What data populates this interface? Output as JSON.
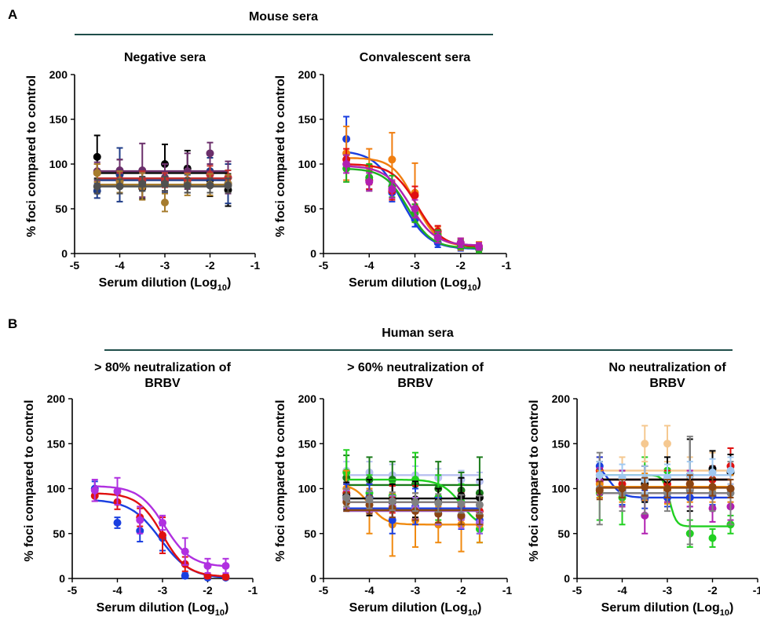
{
  "figure": {
    "panel_a_letter": "A",
    "panel_b_letter": "B",
    "group_a_title": "Mouse sera",
    "group_b_title": "Human sera",
    "group_color": "#1f4e4a"
  },
  "chart_data": [
    {
      "type": "scatter",
      "title": "Negative sera",
      "xlabel": "Serum dilution (Log",
      "xlabel_sub": "10",
      "xlabel_close": ")",
      "ylabel": "% foci compared to control",
      "xlim": [
        -5,
        -1
      ],
      "ylim": [
        0,
        200
      ],
      "xticks": [
        "-5",
        "-4",
        "-3",
        "-2",
        "-1"
      ],
      "yticks": [
        "0",
        "50",
        "100",
        "150",
        "200"
      ],
      "x": [
        -4.5,
        -4.0,
        -3.5,
        -3.0,
        -2.5,
        -2.0,
        -1.6
      ],
      "series": [
        {
          "color": "#000000",
          "values": [
            108,
            90,
            73,
            100,
            95,
            82,
            71
          ],
          "err": [
            24,
            15,
            12,
            22,
            20,
            18,
            18
          ],
          "fit": {
            "kind": "flat",
            "level": 90
          }
        },
        {
          "color": "#1f3c88",
          "values": [
            70,
            88,
            80,
            80,
            78,
            92,
            78
          ],
          "err": [
            8,
            30,
            10,
            12,
            10,
            15,
            22
          ],
          "fit": {
            "kind": "flat",
            "level": 82
          }
        },
        {
          "color": "#6b2f6b",
          "values": [
            92,
            93,
            93,
            85,
            92,
            112,
            85
          ],
          "err": [
            10,
            12,
            30,
            15,
            20,
            12,
            18
          ],
          "fit": {
            "kind": "flat",
            "level": 92
          }
        },
        {
          "color": "#c03030",
          "values": [
            90,
            82,
            82,
            82,
            82,
            88,
            85
          ],
          "err": [
            10,
            8,
            10,
            8,
            8,
            10,
            8
          ],
          "fit": {
            "kind": "flat",
            "level": 84
          }
        },
        {
          "color": "#a67c2e",
          "values": [
            90,
            80,
            75,
            57,
            77,
            77,
            78
          ],
          "err": [
            10,
            12,
            15,
            10,
            12,
            12,
            10
          ],
          "fit": {
            "kind": "flat",
            "level": 77
          }
        },
        {
          "color": "#505050",
          "values": [
            75,
            75,
            78,
            78,
            76,
            76,
            76
          ],
          "err": [
            8,
            8,
            8,
            8,
            8,
            8,
            8
          ],
          "fit": {
            "kind": "flat",
            "level": 75
          }
        }
      ]
    },
    {
      "type": "scatter",
      "title": "Convalescent sera",
      "xlabel": "Serum dilution (Log",
      "xlabel_sub": "10",
      "xlabel_close": ")",
      "ylabel": "% foci compared to control",
      "xlim": [
        -5,
        -1
      ],
      "ylim": [
        0,
        200
      ],
      "xticks": [
        "-5",
        "-4",
        "-3",
        "-2",
        "-1"
      ],
      "yticks": [
        "0",
        "50",
        "100",
        "150",
        "200"
      ],
      "x": [
        -4.5,
        -4.0,
        -3.5,
        -3.0,
        -2.5,
        -2.0,
        -1.6
      ],
      "series": [
        {
          "color": "#1a3fe0",
          "values": [
            128,
            82,
            68,
            38,
            12,
            7,
            6
          ],
          "err": [
            25,
            10,
            10,
            8,
            5,
            4,
            3
          ],
          "fit": {
            "kind": "sig",
            "top": 115,
            "bottom": 5,
            "ec50": -3.3,
            "hill": 1.5
          }
        },
        {
          "color": "#f07e10",
          "values": [
            112,
            97,
            105,
            68,
            22,
            10,
            8
          ],
          "err": [
            30,
            20,
            30,
            33,
            8,
            6,
            5
          ],
          "fit": {
            "kind": "sig",
            "top": 107,
            "bottom": 8,
            "ec50": -3.0,
            "hill": 1.8
          }
        },
        {
          "color": "#e01010",
          "values": [
            105,
            82,
            70,
            65,
            25,
            12,
            6
          ],
          "err": [
            12,
            10,
            10,
            10,
            6,
            5,
            4
          ],
          "fit": {
            "kind": "sig",
            "top": 100,
            "bottom": 7,
            "ec50": -2.95,
            "hill": 1.6
          }
        },
        {
          "color": "#20b020",
          "values": [
            95,
            85,
            75,
            45,
            20,
            10,
            5
          ],
          "err": [
            15,
            15,
            12,
            10,
            6,
            5,
            4
          ],
          "fit": {
            "kind": "sig",
            "top": 95,
            "bottom": 6,
            "ec50": -3.15,
            "hill": 1.7
          }
        },
        {
          "color": "#b020b0",
          "values": [
            100,
            80,
            72,
            50,
            18,
            12,
            8
          ],
          "err": [
            10,
            10,
            10,
            10,
            6,
            5,
            4
          ],
          "fit": {
            "kind": "sig",
            "top": 98,
            "bottom": 9,
            "ec50": -3.1,
            "hill": 1.6
          }
        }
      ]
    },
    {
      "type": "scatter",
      "title": "> 80% neutralization of",
      "title_line2": "BRBV",
      "xlabel": "Serum dilution (Log",
      "xlabel_sub": "10",
      "xlabel_close": ")",
      "ylabel": "% foci compared to control",
      "xlim": [
        -5,
        -1
      ],
      "ylim": [
        0,
        200
      ],
      "xticks": [
        "-5",
        "-4",
        "-3",
        "-2",
        "-1"
      ],
      "yticks": [
        "0",
        "50",
        "100",
        "150",
        "200"
      ],
      "x": [
        -4.5,
        -4.0,
        -3.5,
        -3.0,
        -2.5,
        -2.0,
        -1.6
      ],
      "series": [
        {
          "color": "#1a3fe0",
          "values": [
            100,
            62,
            53,
            45,
            3,
            1,
            1
          ],
          "err": [
            8,
            6,
            12,
            14,
            3,
            2,
            2
          ],
          "fit": {
            "kind": "sig",
            "top": 88,
            "bottom": 0,
            "ec50": -3.05,
            "hill": 1.3
          }
        },
        {
          "color": "#e01010",
          "values": [
            92,
            85,
            68,
            48,
            16,
            3,
            2
          ],
          "err": [
            6,
            8,
            10,
            20,
            8,
            3,
            3
          ],
          "fit": {
            "kind": "sig",
            "top": 95,
            "bottom": 2,
            "ec50": -3.0,
            "hill": 1.6
          }
        },
        {
          "color": "#b030e0",
          "values": [
            98,
            97,
            65,
            62,
            30,
            14,
            14
          ],
          "err": [
            12,
            15,
            15,
            8,
            15,
            8,
            8
          ],
          "fit": {
            "kind": "sig",
            "top": 103,
            "bottom": 13,
            "ec50": -2.95,
            "hill": 1.5
          }
        }
      ]
    },
    {
      "type": "scatter",
      "title": "> 60% neutralization of",
      "title_line2": "BRBV",
      "xlabel": "Serum dilution (Log",
      "xlabel_sub": "10",
      "xlabel_close": ")",
      "ylabel": "% foci compared to control",
      "xlim": [
        -5,
        -1
      ],
      "ylim": [
        0,
        200
      ],
      "xticks": [
        "-5",
        "-4",
        "-3",
        "-2",
        "-1"
      ],
      "yticks": [
        "0",
        "50",
        "100",
        "150",
        "200"
      ],
      "x": [
        -4.5,
        -4.0,
        -3.5,
        -3.0,
        -2.5,
        -2.0,
        -1.6
      ],
      "series": [
        {
          "color": "#b8c0f0",
          "values": [
            120,
            118,
            115,
            115,
            112,
            110,
            108
          ],
          "err": [
            10,
            12,
            12,
            10,
            10,
            10,
            10
          ],
          "fit": {
            "kind": "flat",
            "level": 115
          }
        },
        {
          "color": "#1a7a1a",
          "values": [
            112,
            110,
            110,
            105,
            100,
            98,
            95
          ],
          "err": [
            25,
            25,
            20,
            30,
            30,
            20,
            40
          ],
          "fit": {
            "kind": "flat",
            "level": 104
          }
        },
        {
          "color": "#20d020",
          "values": [
            118,
            95,
            92,
            110,
            90,
            85,
            55
          ],
          "err": [
            25,
            20,
            15,
            30,
            25,
            20,
            15
          ],
          "fit": {
            "kind": "sig",
            "top": 110,
            "bottom": 55,
            "ec50": -2.0,
            "hill": 2.0
          }
        },
        {
          "color": "#f08a10",
          "values": [
            100,
            75,
            60,
            65,
            60,
            60,
            60
          ],
          "err": [
            20,
            25,
            35,
            30,
            20,
            30,
            20
          ],
          "fit": {
            "kind": "sig",
            "top": 105,
            "bottom": 60,
            "ec50": -4.0,
            "hill": 2.5
          }
        },
        {
          "color": "#e01010",
          "values": [
            95,
            90,
            88,
            88,
            85,
            80,
            75
          ],
          "err": [
            10,
            15,
            15,
            15,
            15,
            15,
            15
          ],
          "fit": {
            "kind": "flat",
            "level": 85
          }
        },
        {
          "color": "#000000",
          "values": [
            92,
            90,
            85,
            88,
            85,
            92,
            90
          ],
          "err": [
            15,
            20,
            20,
            20,
            15,
            20,
            20
          ],
          "fit": {
            "kind": "flat",
            "level": 89
          }
        },
        {
          "color": "#1a3fe0",
          "values": [
            90,
            90,
            65,
            80,
            75,
            70,
            65
          ],
          "err": [
            15,
            15,
            15,
            20,
            15,
            15,
            15
          ],
          "fit": {
            "kind": "flat",
            "level": 78
          }
        },
        {
          "color": "#a060e0",
          "values": [
            88,
            85,
            80,
            78,
            72,
            68,
            62
          ],
          "err": [
            10,
            12,
            12,
            12,
            12,
            12,
            12
          ],
          "fit": {
            "kind": "flat",
            "level": 75
          }
        },
        {
          "color": "#8b4513",
          "values": [
            85,
            82,
            78,
            75,
            72,
            70,
            70
          ],
          "err": [
            10,
            10,
            10,
            10,
            10,
            10,
            10
          ],
          "fit": {
            "kind": "flat",
            "level": 76
          }
        },
        {
          "color": "#808080",
          "values": [
            90,
            88,
            86,
            85,
            84,
            83,
            82
          ],
          "err": [
            10,
            10,
            10,
            10,
            10,
            10,
            10
          ],
          "fit": {
            "kind": "flat",
            "level": 85
          }
        }
      ]
    },
    {
      "type": "scatter",
      "title": "No neutralization of",
      "title_line2": "BRBV",
      "xlabel": "Serum dilution (Log",
      "xlabel_sub": "10",
      "xlabel_close": ")",
      "ylabel": "% foci compared to control",
      "xlim": [
        -5,
        -1
      ],
      "ylim": [
        0,
        200
      ],
      "xticks": [
        "-5",
        "-4",
        "-3",
        "-2",
        "-1"
      ],
      "yticks": [
        "0",
        "50",
        "100",
        "150",
        "200"
      ],
      "x": [
        -4.5,
        -4.0,
        -3.5,
        -3.0,
        -2.5,
        -2.0,
        -1.6
      ],
      "series": [
        {
          "color": "#20d020",
          "values": [
            95,
            90,
            110,
            120,
            50,
            45,
            60
          ],
          "err": [
            30,
            30,
            25,
            30,
            15,
            10,
            10
          ],
          "fit": {
            "kind": "sig",
            "top": 115,
            "bottom": 58,
            "ec50": -2.95,
            "hill": 6
          }
        },
        {
          "color": "#f5c890",
          "values": [
            115,
            110,
            150,
            150,
            110,
            120,
            125
          ],
          "err": [
            20,
            25,
            20,
            20,
            25,
            20,
            20
          ],
          "fit": {
            "kind": "flat",
            "level": 120
          }
        },
        {
          "color": "#e01010",
          "values": [
            120,
            105,
            110,
            105,
            105,
            110,
            125
          ],
          "err": [
            15,
            15,
            15,
            15,
            15,
            15,
            20
          ],
          "fit": {
            "kind": "flat",
            "level": 110
          }
        },
        {
          "color": "#1a3fe0",
          "values": [
            125,
            97,
            88,
            90,
            90,
            92,
            100
          ],
          "err": [
            10,
            15,
            10,
            10,
            10,
            10,
            15
          ],
          "fit": {
            "kind": "sig",
            "top": 130,
            "bottom": 90,
            "ec50": -4.3,
            "hill": 3
          }
        },
        {
          "color": "#000000",
          "values": [
            110,
            100,
            105,
            110,
            115,
            122,
            118
          ],
          "err": [
            20,
            20,
            20,
            25,
            40,
            20,
            20
          ],
          "fit": {
            "kind": "flat",
            "level": 110
          }
        },
        {
          "color": "#b020b0",
          "values": [
            108,
            100,
            70,
            100,
            100,
            78,
            80
          ],
          "err": [
            15,
            20,
            20,
            15,
            20,
            15,
            15
          ],
          "fit": {
            "kind": "flat",
            "level": 95
          }
        },
        {
          "color": "#f08a10",
          "values": [
            105,
            100,
            102,
            98,
            100,
            100,
            100
          ],
          "err": [
            15,
            15,
            15,
            15,
            15,
            15,
            15
          ],
          "fit": {
            "kind": "flat",
            "level": 102
          }
        },
        {
          "color": "#808080",
          "values": [
            100,
            95,
            92,
            95,
            98,
            95,
            95
          ],
          "err": [
            40,
            20,
            20,
            20,
            60,
            20,
            35
          ],
          "fit": {
            "kind": "flat",
            "level": 95
          }
        },
        {
          "color": "#a0c8f0",
          "values": [
            115,
            112,
            110,
            112,
            115,
            118,
            120
          ],
          "err": [
            15,
            15,
            15,
            15,
            15,
            15,
            15
          ],
          "fit": {
            "kind": "flat",
            "level": 115
          }
        },
        {
          "color": "#8b4513",
          "values": [
            98,
            100,
            102,
            100,
            105,
            102,
            100
          ],
          "err": [
            10,
            10,
            10,
            10,
            10,
            10,
            10
          ],
          "fit": {
            "kind": "flat",
            "level": 101
          }
        }
      ]
    }
  ]
}
